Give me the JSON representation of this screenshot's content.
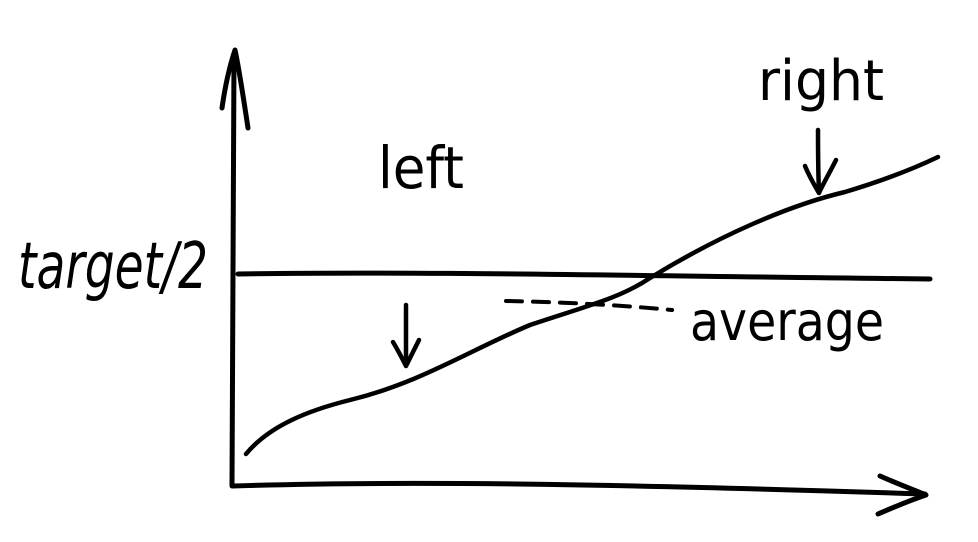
{
  "labels": {
    "y_axis_label": "target/2",
    "left_label": "left",
    "right_label": "right",
    "average_label": "average"
  },
  "colors": {
    "ink": "#000000",
    "paper": "#ffffff"
  }
}
